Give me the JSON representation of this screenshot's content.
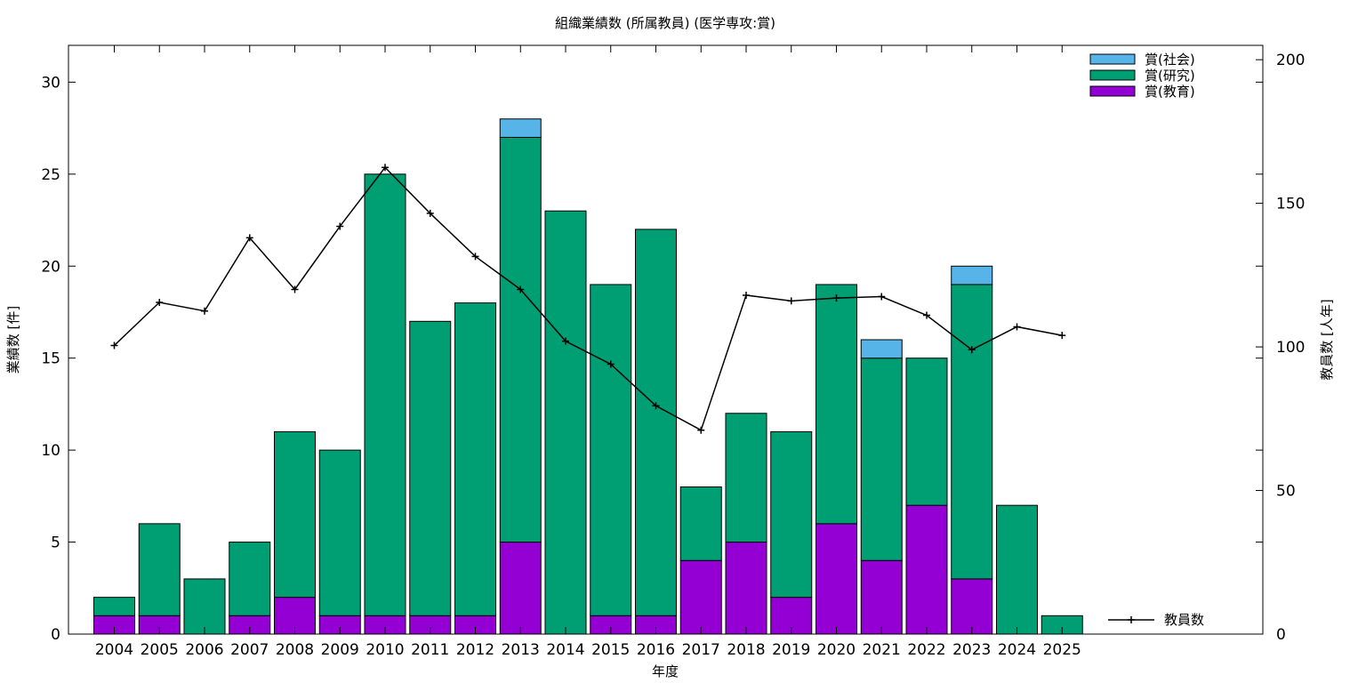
{
  "chart_data": {
    "type": "bar",
    "title": "組織業績数 (所属教員) (医学専攻:賞)",
    "xlabel": "年度",
    "ylabel": "業績数 [件]",
    "y2label": "教員数 [人年]",
    "ylim": [
      0,
      32
    ],
    "y2lim": [
      0,
      205
    ],
    "yticks": [
      0,
      5,
      10,
      15,
      20,
      25,
      30
    ],
    "y2ticks": [
      0,
      50,
      100,
      150,
      200
    ],
    "stacked": true,
    "categories": [
      "2004",
      "2005",
      "2006",
      "2007",
      "2008",
      "2009",
      "2010",
      "2011",
      "2012",
      "2013",
      "2014",
      "2015",
      "2016",
      "2017",
      "2018",
      "2019",
      "2020",
      "2021",
      "2022",
      "2023",
      "2024",
      "2025"
    ],
    "series": [
      {
        "name": "賞(教育)",
        "color": "#9400d3",
        "values": [
          1,
          1,
          0,
          1,
          2,
          1,
          1,
          1,
          1,
          5,
          0,
          1,
          1,
          4,
          5,
          2,
          6,
          4,
          7,
          3,
          0,
          0
        ]
      },
      {
        "name": "賞(研究)",
        "color": "#009e73",
        "values": [
          1,
          5,
          3,
          4,
          9,
          9,
          24,
          16,
          17,
          22,
          23,
          18,
          21,
          4,
          7,
          9,
          13,
          11,
          8,
          16,
          7,
          1
        ]
      },
      {
        "name": "賞(社会)",
        "color": "#56b4e9",
        "values": [
          0,
          0,
          0,
          0,
          0,
          0,
          0,
          0,
          0,
          1,
          0,
          0,
          0,
          0,
          0,
          0,
          0,
          1,
          0,
          1,
          0,
          0
        ]
      }
    ],
    "legend_order": [
      "賞(社会)",
      "賞(研究)",
      "賞(教育)"
    ],
    "legend_position": "top-right",
    "line_series": {
      "name": "教員数",
      "color": "#000000",
      "axis": "right",
      "values": [
        100.5,
        115.5,
        112.5,
        138,
        120,
        142,
        162.5,
        146.5,
        131.5,
        120,
        102,
        94,
        79.5,
        71,
        118,
        116,
        117,
        117.5,
        111,
        99,
        107,
        104
      ]
    },
    "grid": false
  }
}
